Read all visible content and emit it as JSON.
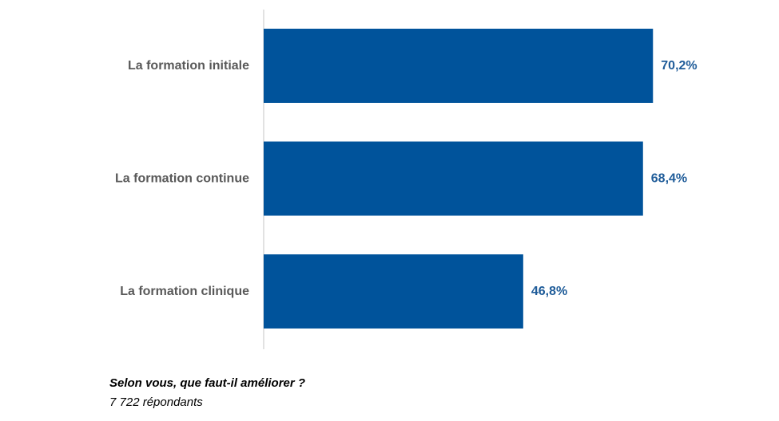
{
  "chart_data": {
    "type": "bar",
    "orientation": "horizontal",
    "categories": [
      "La formation initiale",
      "La formation continue",
      "La formation clinique"
    ],
    "values": [
      70.2,
      68.4,
      46.8
    ],
    "value_labels": [
      "70,2%",
      "68,4%",
      "46,8%"
    ],
    "unit": "%",
    "xlim": [
      0,
      85
    ],
    "grid": false,
    "legend": "none"
  },
  "caption": {
    "question": "Selon vous, que faut-il améliorer ?",
    "respondents": "7 722 répondants"
  },
  "colors": {
    "bar": "#00539B",
    "value_label": "#1F5C99",
    "category_label": "#595959",
    "axis": "#D9D9D9"
  }
}
